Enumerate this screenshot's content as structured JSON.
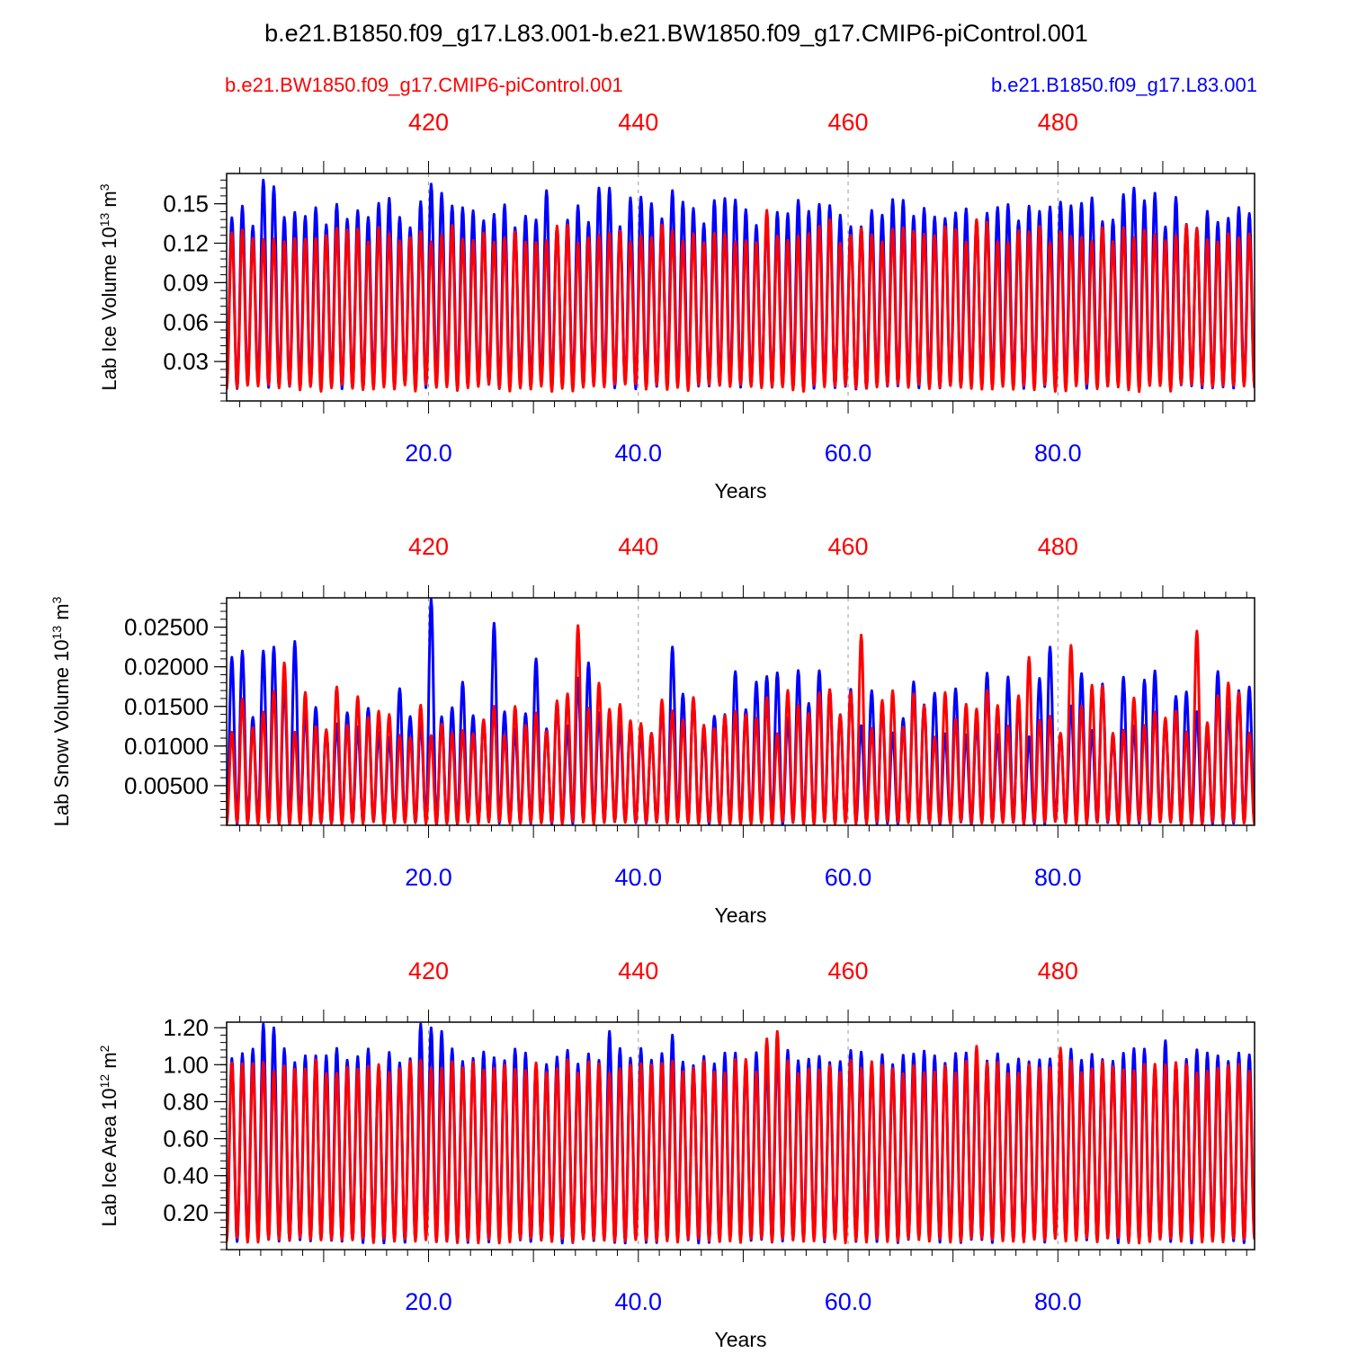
{
  "page": {
    "title": "b.e21.B1850.f09_g17.L83.001-b.e21.BW1850.f09_g17.CMIP6-piControl.001",
    "legend_left": "b.e21.BW1850.f09_g17.CMIP6-piControl.001",
    "legend_right": "b.e21.B1850.f09_g17.L83.001"
  },
  "colors": {
    "control_series": "#ff0000",
    "case_series": "#0000ff",
    "axis": "#000000",
    "gridline": "#999999"
  },
  "chart_data": [
    {
      "type": "line",
      "ylabel": "Lab Ice Volume 10",
      "ylabel_exp": "13",
      "ylabel_unit": " m",
      "ylabel_unit_exp": "3",
      "xlabel": "Years",
      "xlim": [
        0.75,
        98.75
      ],
      "ylim": [
        0.0,
        0.173
      ],
      "yticks": [
        0.03,
        0.06,
        0.09,
        0.12,
        0.15
      ],
      "yticklabels": [
        "0.03",
        "0.06",
        "0.09",
        "0.12",
        "0.15"
      ],
      "xticks_bottom": [
        20,
        40,
        60,
        80
      ],
      "xticklabels_bottom": [
        "20.0",
        "40.0",
        "60.0",
        "80.0"
      ],
      "xticklabels_top": [
        "420",
        "440",
        "460",
        "480"
      ],
      "series": [
        {
          "name": "b.e21.B1850.f09_g17.L83.001",
          "color": "#0000ff",
          "peak": 0.143,
          "trough": 0.012,
          "peak_var": 0.012,
          "trough_var": 0.003,
          "seed": 11,
          "overrides": {
            "4": 0.168,
            "5": 0.163,
            "20": 0.165,
            "21": 0.158,
            "23": 0.147,
            "31": 0.16,
            "36": 0.162,
            "37": 0.162,
            "40": 0.155,
            "43": 0.16,
            "86": 0.157,
            "87": 0.162,
            "89": 0.158
          }
        },
        {
          "name": "b.e21.BW1850.f09_g17.CMIP6-piControl.001",
          "color": "#ff0000",
          "peak": 0.127,
          "trough": 0.01,
          "peak_var": 0.007,
          "trough_var": 0.003,
          "seed": 23,
          "overrides": {
            "52": 0.145,
            "58": 0.138,
            "72": 0.138,
            "73": 0.136
          }
        }
      ]
    },
    {
      "type": "line",
      "ylabel": "Lab Snow Volume 10",
      "ylabel_exp": "13",
      "ylabel_unit": " m",
      "ylabel_unit_exp": "3",
      "xlabel": "Years",
      "xlim": [
        0.75,
        98.75
      ],
      "ylim": [
        0.0,
        0.0287
      ],
      "yticks": [
        0.005,
        0.01,
        0.015,
        0.02,
        0.025
      ],
      "yticklabels": [
        "0.00500",
        "0.01000",
        "0.01500",
        "0.02000",
        "0.02500"
      ],
      "xticks_bottom": [
        20,
        40,
        60,
        80
      ],
      "xticklabels_bottom": [
        "20.0",
        "40.0",
        "60.0",
        "80.0"
      ],
      "xticklabels_top": [
        "420",
        "440",
        "460",
        "480"
      ],
      "series": [
        {
          "name": "b.e21.B1850.f09_g17.L83.001",
          "color": "#0000ff",
          "peak": 0.0155,
          "trough": 0.0003,
          "peak_var": 0.0045,
          "trough_var": 0.0002,
          "seed": 37,
          "overrides": {
            "1": 0.0212,
            "2": 0.022,
            "4": 0.022,
            "5": 0.0225,
            "7": 0.0232,
            "20": 0.0285,
            "26": 0.0255,
            "30": 0.021,
            "35": 0.0205,
            "43": 0.0225,
            "79": 0.0225
          }
        },
        {
          "name": "b.e21.BW1850.f09_g17.CMIP6-piControl.001",
          "color": "#ff0000",
          "peak": 0.0145,
          "trough": 0.0003,
          "peak_var": 0.0035,
          "trough_var": 0.0002,
          "seed": 53,
          "overrides": {
            "6": 0.0205,
            "34": 0.0252,
            "61": 0.024,
            "77": 0.0212,
            "81": 0.0227,
            "93": 0.0245
          }
        }
      ]
    },
    {
      "type": "line",
      "ylabel": "Lab Ice Area 10",
      "ylabel_exp": "12",
      "ylabel_unit": " m",
      "ylabel_unit_exp": "2",
      "xlabel": "Years",
      "xlim": [
        0.75,
        98.75
      ],
      "ylim": [
        0.0,
        1.23
      ],
      "yticks": [
        0.2,
        0.4,
        0.6,
        0.8,
        1.0,
        1.2
      ],
      "yticklabels": [
        "0.20",
        "0.40",
        "0.60",
        "0.80",
        "1.00",
        "1.20"
      ],
      "xticks_bottom": [
        20,
        40,
        60,
        80
      ],
      "xticklabels_bottom": [
        "20.0",
        "40.0",
        "60.0",
        "80.0"
      ],
      "xticklabels_top": [
        "420",
        "440",
        "460",
        "480"
      ],
      "series": [
        {
          "name": "b.e21.B1850.f09_g17.L83.001",
          "color": "#0000ff",
          "peak": 1.04,
          "trough": 0.05,
          "peak_var": 0.05,
          "trough_var": 0.015,
          "seed": 71,
          "overrides": {
            "4": 1.22,
            "5": 1.2,
            "19": 1.22,
            "20": 1.2,
            "21": 1.18,
            "37": 1.18,
            "43": 1.16,
            "90": 1.13
          }
        },
        {
          "name": "b.e21.BW1850.f09_g17.CMIP6-piControl.001",
          "color": "#ff0000",
          "peak": 0.99,
          "trough": 0.05,
          "peak_var": 0.04,
          "trough_var": 0.015,
          "seed": 89,
          "overrides": {
            "52": 1.14,
            "53": 1.18,
            "72": 1.1,
            "80": 1.09
          }
        }
      ]
    }
  ]
}
